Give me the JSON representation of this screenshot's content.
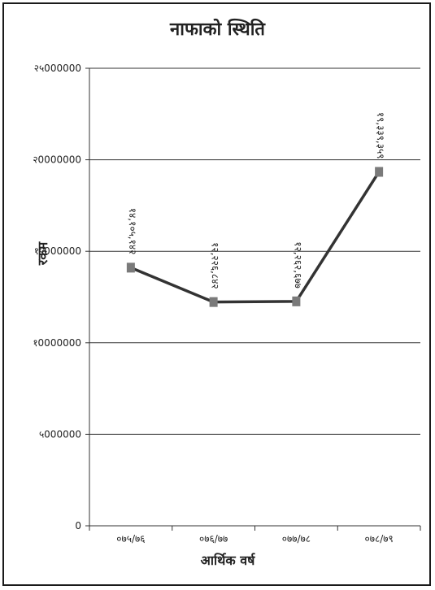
{
  "chart_data": {
    "type": "line",
    "title": "नाफाको स्थिति",
    "xlabel": "आर्थिक वर्ष",
    "ylabel": "रकम",
    "categories": [
      "०७५/७६",
      "०७६/७७",
      "०७७/७८",
      "०७८/७९"
    ],
    "series": [
      {
        "values": [
          14105142,
          12226842,
          12262677,
          19339359
        ],
        "data_labels": [
          "१४,१०५,१४२",
          "१२,२२६,८४२",
          "१२,२६२,६७७",
          "१९,३३९,३५९"
        ]
      }
    ],
    "ylim": [
      0,
      25000000
    ],
    "yticks": [
      0,
      5000000,
      10000000,
      15000000,
      20000000,
      25000000
    ],
    "ytick_labels": [
      "0",
      "५000000",
      "१0000000",
      "१५000000",
      "२0000000",
      "२५000000"
    ],
    "grid": true,
    "colors": {
      "line": "#333333",
      "marker": "#7a7a7a",
      "grid": "#333333"
    }
  }
}
